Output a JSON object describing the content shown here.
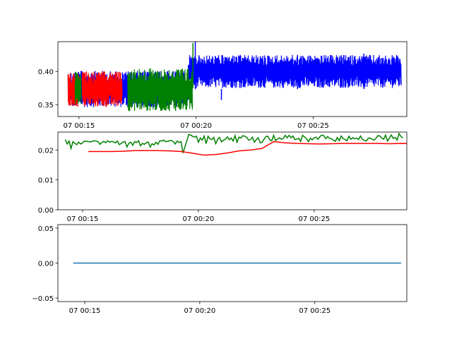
{
  "chart_data": [
    {
      "type": "line",
      "title": "",
      "xlabel": "",
      "ylabel": "",
      "xlim": [
        "00:14:06",
        "00:29:00"
      ],
      "ylim": [
        0.332,
        0.445
      ],
      "grid": false,
      "yticks": [
        0.35,
        0.4
      ],
      "ytick_labels": [
        "0.35",
        "0.40"
      ],
      "xticks": [
        "00:15:00",
        "00:20:00",
        "00:25:00"
      ],
      "xtick_labels": [
        "07 00:15",
        "07 00:20",
        "07 00:25"
      ],
      "series": [
        {
          "color": "#0000ff",
          "style": "dense_noise",
          "segments": [
            {
              "start": "00:14:32",
              "end": "00:19:40",
              "min": 0.346,
              "max": 0.401
            },
            {
              "start": "00:19:40",
              "end": "00:28:45",
              "min": 0.375,
              "max": 0.425
            }
          ],
          "spikes": [
            {
              "x": "00:19:58",
              "y": 0.445
            },
            {
              "x": "00:21:05",
              "y": 0.357
            },
            {
              "x": "00:24:20",
              "y": 0.425
            },
            {
              "x": "00:27:10",
              "y": 0.427
            }
          ]
        },
        {
          "color": "#ff0000",
          "style": "dense_noise",
          "segments": [
            {
              "start": "00:14:32",
              "end": "00:15:00",
              "min": 0.346,
              "max": 0.398
            },
            {
              "start": "00:15:08",
              "end": "00:16:50",
              "min": 0.346,
              "max": 0.4
            }
          ]
        },
        {
          "color": "#008000",
          "style": "dense_noise",
          "segments": [
            {
              "start": "00:14:50",
              "end": "00:15:05",
              "min": 0.35,
              "max": 0.4
            },
            {
              "start": "00:17:05",
              "end": "00:19:50",
              "min": 0.34,
              "max": 0.405
            }
          ],
          "spikes": [
            {
              "x": "00:19:52",
              "y": 0.443
            }
          ]
        }
      ]
    },
    {
      "type": "line",
      "title": "",
      "xlabel": "",
      "ylabel": "",
      "xlim": [
        "00:13:56",
        "00:29:00"
      ],
      "ylim": [
        0.0,
        0.026
      ],
      "grid": false,
      "yticks": [
        0.0,
        0.01,
        0.02
      ],
      "ytick_labels": [
        "0.00",
        "0.01",
        "0.02"
      ],
      "xticks": [
        "00:15:00",
        "00:20:00",
        "00:25:00"
      ],
      "xtick_labels": [
        "07 00:15",
        "07 00:20",
        "07 00:25"
      ],
      "series": [
        {
          "color": "#008000",
          "t0": "00:14:15",
          "dt_seconds": 5,
          "values": [
            0.0235,
            0.022,
            0.023,
            0.0205,
            0.0228,
            0.0222,
            0.0218,
            0.0226,
            0.022,
            0.0224,
            0.023,
            0.0229,
            0.0228,
            0.0227,
            0.0229,
            0.0231,
            0.023,
            0.0228,
            0.0219,
            0.0225,
            0.0229,
            0.0224,
            0.0231,
            0.0226,
            0.0229,
            0.0227,
            0.0224,
            0.023,
            0.0218,
            0.0222,
            0.0227,
            0.0228,
            0.021,
            0.0223,
            0.0226,
            0.0216,
            0.0228,
            0.0225,
            0.0231,
            0.0214,
            0.0222,
            0.0219,
            0.0224,
            0.0227,
            0.021,
            0.0221,
            0.0217,
            0.0226,
            0.0219,
            0.0231,
            0.023,
            0.0233,
            0.0228,
            0.0229,
            0.0231,
            0.0232,
            0.0228,
            0.022,
            0.023,
            0.0225,
            0.0228,
            0.019,
            0.021,
            0.023,
            0.0252,
            0.025,
            0.0246,
            0.0243,
            0.0246,
            0.0226,
            0.024,
            0.0233,
            0.0247,
            0.0221,
            0.0246,
            0.0237,
            0.0235,
            0.0242,
            0.0221,
            0.0236,
            0.0242,
            0.0227,
            0.0233,
            0.0236,
            0.0244,
            0.0234,
            0.024,
            0.023,
            0.0248,
            0.0226,
            0.0243,
            0.024,
            0.0248,
            0.0246,
            0.0242,
            0.0233,
            0.0235,
            0.0243,
            0.0226,
            0.0235,
            0.0241,
            0.0224,
            0.0226,
            0.0236,
            0.0245,
            0.0246,
            0.0234,
            0.0231,
            0.0249,
            0.0232,
            0.0236,
            0.0241,
            0.0236,
            0.0239,
            0.0249,
            0.0241,
            0.0249,
            0.0241,
            0.0247,
            0.0235,
            0.0236,
            0.0239,
            0.0229,
            0.0249,
            0.0244,
            0.0238,
            0.0228,
            0.0239,
            0.0234,
            0.0241,
            0.0243,
            0.0236,
            0.0245,
            0.025,
            0.0248,
            0.0238,
            0.0245,
            0.0239,
            0.0237,
            0.0233,
            0.0229,
            0.0242,
            0.0231,
            0.0247,
            0.0238,
            0.0235,
            0.0231,
            0.0246,
            0.0236,
            0.0241,
            0.0238,
            0.024,
            0.0235,
            0.0247,
            0.0236,
            0.0232,
            0.023,
            0.0239,
            0.024,
            0.0236,
            0.0233,
            0.0239,
            0.0248,
            0.0247,
            0.024,
            0.0236,
            0.025,
            0.023,
            0.024,
            0.025,
            0.0239,
            0.0242,
            0.0233,
            0.0255,
            0.0245,
            0.024
          ]
        },
        {
          "color": "#ff0000",
          "t0": "00:15:15",
          "dt_seconds": 30,
          "values": [
            0.0195,
            0.0195,
            0.0195,
            0.0196,
            0.0198,
            0.0198,
            0.0198,
            0.0197,
            0.0195,
            0.0189,
            0.0183,
            0.0185,
            0.019,
            0.0197,
            0.02,
            0.0205,
            0.0228,
            0.0224,
            0.0222,
            0.0221,
            0.022,
            0.0221,
            0.0222,
            0.0222,
            0.0222,
            0.0222,
            0.0221,
            0.0222,
            0.0221,
            0.0222,
            0.0222,
            0.0221,
            0.022,
            0.0221,
            0.0222,
            0.0223,
            0.0222,
            0.0224,
            0.0221,
            0.0221,
            0.022,
            0.0218,
            0.022,
            0.0221,
            0.0223,
            0.0221,
            0.0223,
            0.0221
          ]
        }
      ]
    },
    {
      "type": "line",
      "title": "",
      "xlabel": "",
      "ylabel": "",
      "xlim": [
        "00:13:50",
        "00:29:00"
      ],
      "ylim": [
        -0.055,
        0.055
      ],
      "grid": false,
      "yticks": [
        -0.05,
        0.0,
        0.05
      ],
      "ytick_labels": [
        "−0.05",
        "0.00",
        "0.05"
      ],
      "xticks": [
        "00:15:00",
        "00:20:00",
        "00:25:00"
      ],
      "xtick_labels": [
        "07 00:15",
        "07 00:20",
        "07 00:25"
      ],
      "series": [
        {
          "color": "#1f77b4",
          "x": [
            "00:14:30",
            "00:28:45"
          ],
          "values": [
            0.0,
            0.0
          ]
        }
      ]
    }
  ]
}
